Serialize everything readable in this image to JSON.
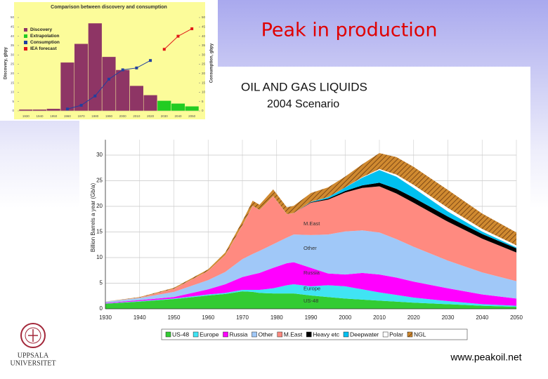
{
  "title": "Peak in production",
  "url": "www.peakoil.net",
  "logo": [
    "UPPSALA",
    "UNIVERSITET"
  ],
  "chart_data": [
    {
      "type": "bar",
      "title": "Comparison between discovery and consumption",
      "ylabel": "Discovery, gbpy",
      "y2label": "Consumption, gbpy",
      "background": "#fcfc9a",
      "categories": [
        "1930",
        "1940",
        "1950",
        "1960",
        "1970",
        "1980",
        "1990",
        "2000",
        "2010",
        "2020",
        "2030",
        "2040",
        "2050"
      ],
      "series": [
        {
          "name": "Discovery",
          "type": "bar",
          "color": "#8e3565",
          "values": [
            0.8,
            0.8,
            1.2,
            26,
            36,
            47,
            29,
            22,
            13.5,
            8.5,
            null,
            null,
            null
          ]
        },
        {
          "name": "Extrapolation",
          "type": "bar",
          "color": "#22cc22",
          "values": [
            null,
            null,
            null,
            null,
            null,
            null,
            null,
            null,
            null,
            null,
            5.5,
            4,
            2.5
          ]
        },
        {
          "name": "Consumption",
          "type": "line",
          "axis": "y2",
          "color": "#22409f",
          "values": [
            null,
            null,
            null,
            1,
            3,
            8,
            17,
            22,
            23,
            27,
            null,
            null,
            null
          ]
        },
        {
          "name": "IEA forecast",
          "type": "line",
          "axis": "y2",
          "color": "#e01818",
          "values": [
            null,
            null,
            null,
            null,
            null,
            null,
            null,
            null,
            null,
            null,
            33,
            40,
            44
          ]
        }
      ],
      "ylim": [
        0,
        50
      ],
      "yticks": [
        0,
        5,
        10,
        15,
        20,
        25,
        30,
        35,
        40,
        45,
        50
      ],
      "y2lim": [
        0,
        50
      ],
      "y2ticks": [
        0,
        5,
        10,
        15,
        20,
        25,
        30,
        35,
        40,
        45,
        50
      ]
    },
    {
      "type": "area",
      "stacked": true,
      "grid": true,
      "title": "OIL AND GAS LIQUIDS",
      "subtitle": "2004 Scenario",
      "ylabel": "Billion Barrels a year (Gb/a)",
      "x": [
        1930,
        1940,
        1950,
        1960,
        1965,
        1970,
        1973,
        1975,
        1979,
        1983,
        1985,
        1990,
        1995,
        2000,
        2005,
        2010,
        2015,
        2020,
        2030,
        2040,
        2050
      ],
      "series": [
        {
          "name": "US-48",
          "color": "#33cc33",
          "values": [
            1.0,
            1.4,
            1.9,
            2.6,
            2.9,
            3.4,
            3.3,
            3.1,
            3.0,
            3.0,
            3.0,
            2.6,
            2.3,
            2.0,
            1.8,
            1.6,
            1.4,
            1.2,
            0.9,
            0.6,
            0.4
          ]
        },
        {
          "name": "Europe",
          "color": "#40e4f4",
          "values": [
            0.05,
            0.1,
            0.1,
            0.2,
            0.2,
            0.3,
            0.4,
            0.6,
            1.0,
            1.6,
            1.8,
            1.8,
            2.3,
            2.4,
            2.0,
            1.6,
            1.3,
            1.0,
            0.6,
            0.3,
            0.2
          ]
        },
        {
          "name": "Russia",
          "color": "#ff00ff",
          "values": [
            0.1,
            0.2,
            0.3,
            1.0,
            1.7,
            2.5,
            3.0,
            3.3,
            4.0,
            4.3,
            4.3,
            3.6,
            2.3,
            2.3,
            3.2,
            3.5,
            3.4,
            3.1,
            2.5,
            1.9,
            1.4
          ]
        },
        {
          "name": "Other",
          "color": "#a0c8f8",
          "values": [
            0.2,
            0.4,
            1.0,
            1.8,
            2.4,
            3.5,
            4.0,
            4.3,
            4.6,
            5.0,
            5.4,
            6.4,
            7.6,
            8.4,
            8.3,
            8.2,
            7.5,
            6.8,
            5.4,
            4.3,
            3.4
          ]
        },
        {
          "name": "M.East",
          "color": "#ff8a80",
          "values": [
            0.05,
            0.1,
            0.6,
            1.8,
            3.3,
            6.6,
            9.4,
            8.0,
            9.4,
            4.6,
            4.2,
            6.3,
            6.8,
            7.6,
            8.3,
            9.0,
            8.9,
            8.6,
            7.6,
            6.6,
            5.6
          ]
        },
        {
          "name": "Heavy etc",
          "color": "#000000",
          "values": [
            0,
            0,
            0,
            0,
            0,
            0,
            0,
            0,
            0,
            0,
            0,
            0.1,
            0.2,
            0.3,
            0.5,
            0.7,
            0.9,
            1.0,
            1.0,
            0.9,
            0.8
          ]
        },
        {
          "name": "Deepwater",
          "color": "#00c0f0",
          "values": [
            0,
            0,
            0,
            0,
            0,
            0,
            0,
            0,
            0,
            0,
            0,
            0.1,
            0.3,
            0.7,
            1.5,
            2.5,
            2.4,
            1.9,
            1.0,
            0.5,
            0.2
          ]
        },
        {
          "name": "Polar",
          "color": "#ffffff",
          "values": [
            0,
            0,
            0,
            0,
            0,
            0,
            0,
            0,
            0,
            0,
            0,
            0,
            0,
            0,
            0.1,
            0.2,
            0.4,
            0.6,
            0.7,
            0.5,
            0.4
          ]
        },
        {
          "name": "NGL",
          "color": "#d08a30",
          "hatch": true,
          "values": [
            0,
            0.1,
            0.2,
            0.3,
            0.5,
            0.8,
            1.0,
            1.0,
            1.3,
            1.3,
            1.4,
            1.7,
            1.9,
            2.1,
            2.5,
            3.1,
            3.4,
            3.5,
            3.5,
            3.0,
            2.5
          ]
        }
      ],
      "xlim": [
        1930,
        2050
      ],
      "xticks": [
        1930,
        1940,
        1950,
        1960,
        1970,
        1980,
        1990,
        2000,
        2010,
        2020,
        2030,
        2040,
        2050
      ],
      "ylim": [
        0,
        33
      ],
      "yticks": [
        0,
        5,
        10,
        15,
        20,
        25,
        30
      ]
    }
  ]
}
